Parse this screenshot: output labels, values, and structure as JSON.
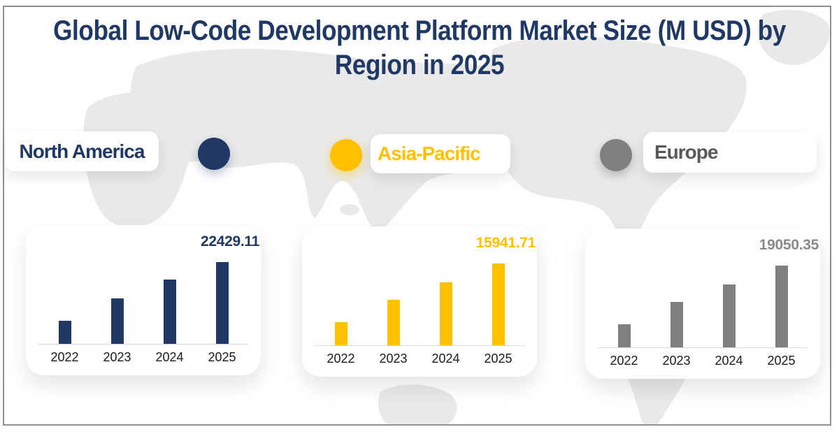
{
  "page": {
    "background": "#ffffff",
    "border_color": "#8f8f8f",
    "map_color": "#e9e9e9"
  },
  "header": {
    "title_line1": "Global Low-Code Development Platform Market Size (M USD)  by",
    "title_line2": "Region in 2025",
    "title_color": "#1f3864"
  },
  "legend": {
    "items": [
      {
        "label": "North America",
        "marker": "circle-icon",
        "marker_color": "#1f3864",
        "text_color": "#1f3864",
        "marker_position": "right-of-box"
      },
      {
        "label": "Asia-Pacific",
        "marker": "circle-icon",
        "marker_color": "#ffc000",
        "text_color": "#ffc000",
        "marker_position": "left-of-box"
      },
      {
        "label": "Europe",
        "marker": "circle-icon",
        "marker_color": "#808080",
        "text_color": "#595959",
        "marker_position": "left-of-box"
      }
    ]
  },
  "chart_data": [
    {
      "type": "bar",
      "region": "North America",
      "categories": [
        "2022",
        "2023",
        "2024",
        "2025"
      ],
      "values": [
        6330,
        12460,
        17640,
        22429.11
      ],
      "data_label": "22429.11",
      "labeled_year": "2025",
      "color": "#1f3864",
      "label_color": "#1f3864",
      "ylim": [
        0,
        23500
      ],
      "grid": false,
      "legend_position": "none",
      "note": "only 2025 value labeled; 2022-2024 estimated from bar heights"
    },
    {
      "type": "bar",
      "region": "Asia-Pacific",
      "categories": [
        "2022",
        "2023",
        "2024",
        "2025"
      ],
      "values": [
        4500,
        8860,
        12260,
        15941.71
      ],
      "data_label": "15941.71",
      "labeled_year": "2025",
      "color": "#ffc000",
      "label_color": "#ffc000",
      "ylim": [
        0,
        16700
      ],
      "grid": false,
      "legend_position": "none",
      "note": "only 2025 value labeled; 2022-2024 estimated from bar heights"
    },
    {
      "type": "bar",
      "region": "Europe",
      "categories": [
        "2022",
        "2023",
        "2024",
        "2025"
      ],
      "values": [
        5370,
        10580,
        14650,
        19050.35
      ],
      "data_label": "19050.35",
      "labeled_year": "2025",
      "color": "#808080",
      "label_color": "#8a8a8a",
      "ylim": [
        0,
        20000
      ],
      "grid": false,
      "legend_position": "none",
      "note": "only 2025 value labeled; 2022-2024 estimated from bar heights"
    }
  ]
}
